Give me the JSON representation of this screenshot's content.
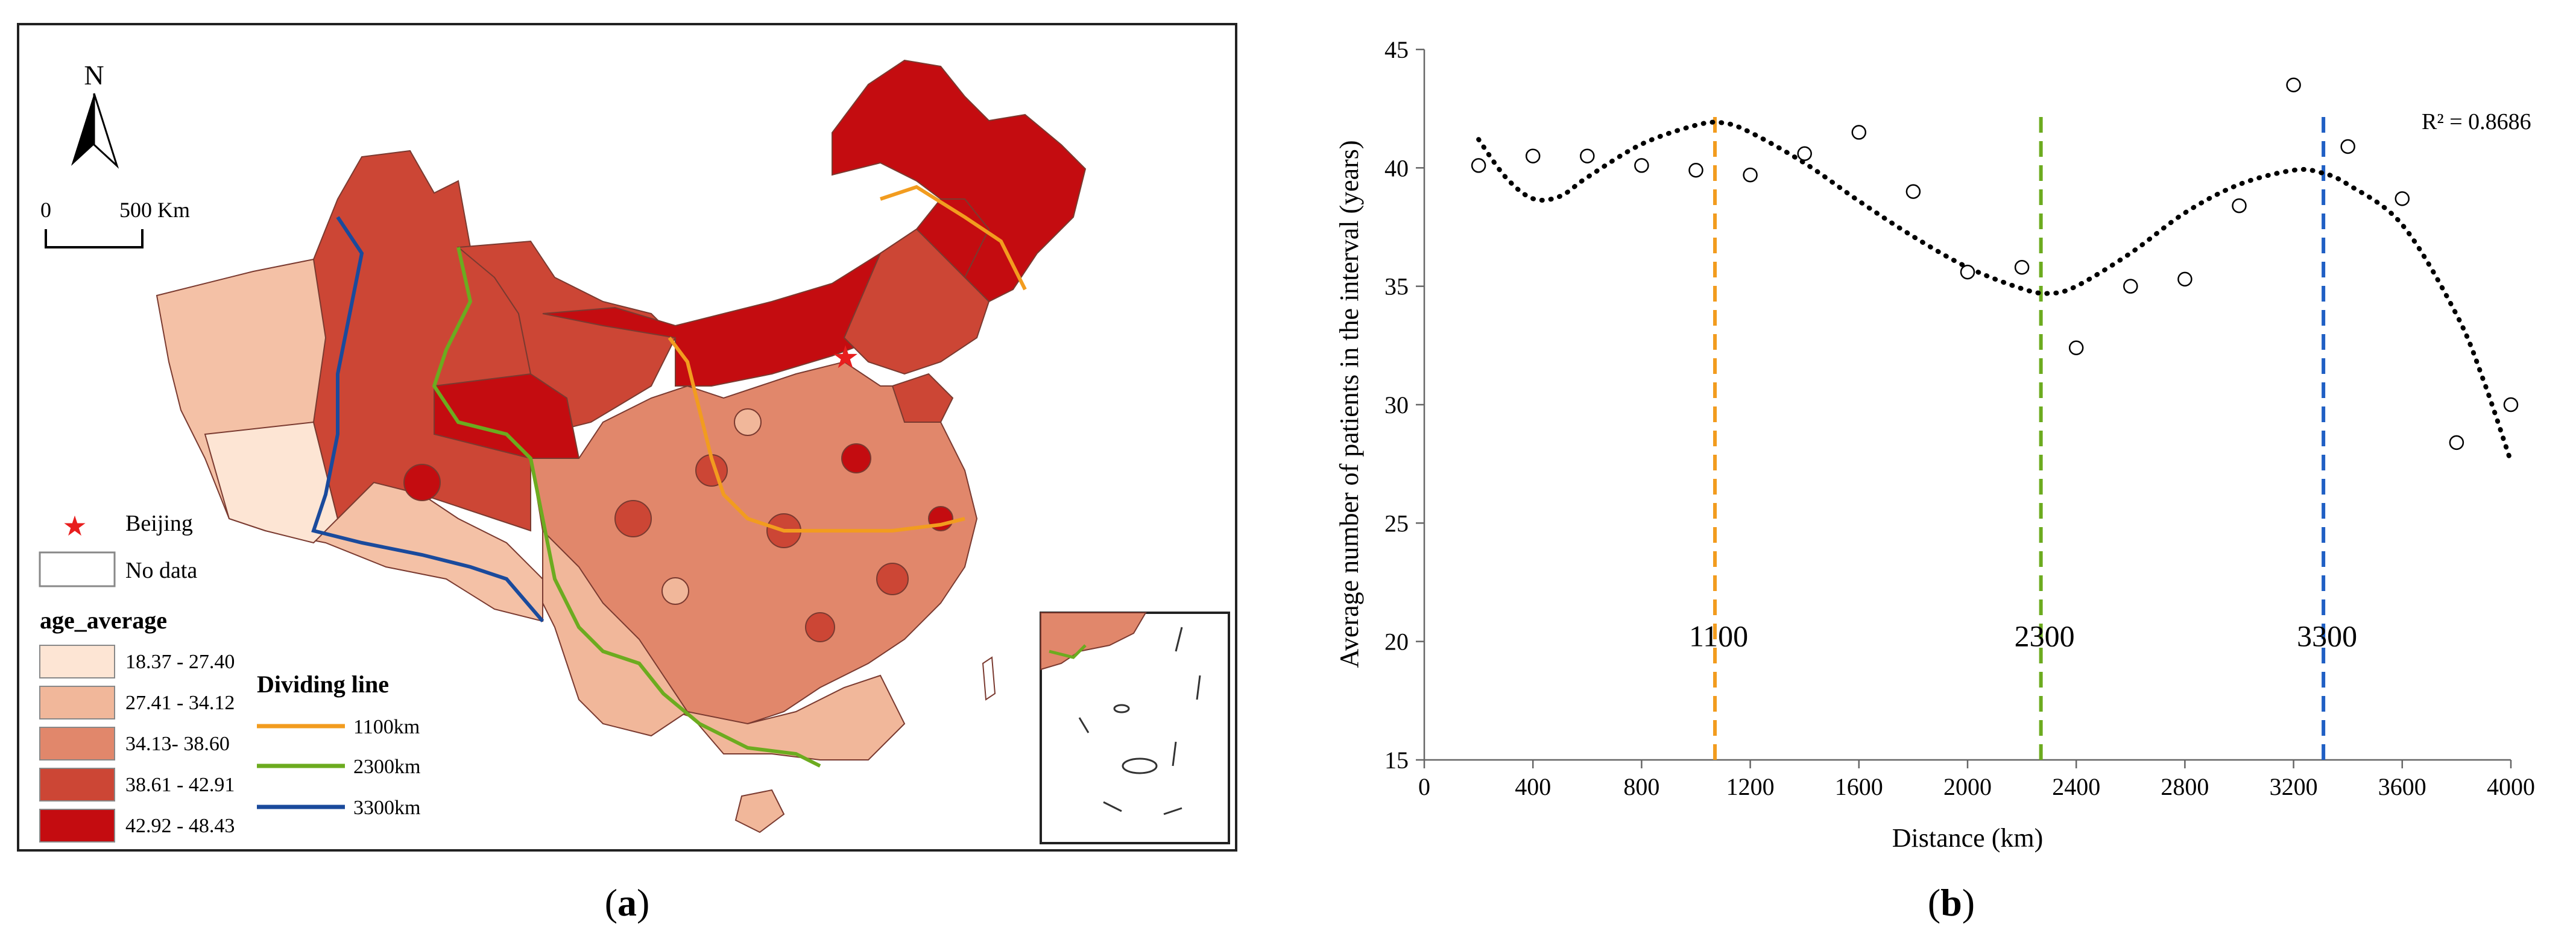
{
  "panel_a": {
    "label_open": "(",
    "label_letter": "a",
    "label_close": ")",
    "north": "N",
    "scale_zero": "0",
    "scale_text": "500 Km",
    "beijing_label": "Beijing",
    "no_data_label": "No data",
    "legend_title": "age_average",
    "classes": [
      {
        "range": "18.37 - 27.40",
        "color": "#fde5d4"
      },
      {
        "range": "27.41 - 34.12",
        "color": "#f1b79a"
      },
      {
        "range": "34.13- 38.60",
        "color": "#e1876b"
      },
      {
        "range": "38.61 - 42.91",
        "color": "#cc4635"
      },
      {
        "range": "42.92 - 48.43",
        "color": "#c40c10"
      }
    ],
    "dividing_title": "Dividing line",
    "dividing_lines": [
      {
        "label": "1100km",
        "color": "#f29c1f"
      },
      {
        "label": "2300km",
        "color": "#6cab1f"
      },
      {
        "label": "3300km",
        "color": "#1a4a9c"
      }
    ]
  },
  "panel_b": {
    "label_open": "(",
    "label_letter": "b",
    "label_close": ")"
  },
  "chart_data": {
    "type": "scatter",
    "title": "",
    "xlabel": "Distance (km)",
    "ylabel": "Average number of patients in the interval (years)",
    "xlim": [
      0,
      4000
    ],
    "ylim": [
      15,
      45
    ],
    "xticks": [
      0,
      400,
      800,
      1200,
      1600,
      2000,
      2400,
      2800,
      3200,
      3600,
      4000
    ],
    "yticks": [
      15,
      20,
      25,
      30,
      35,
      40,
      45
    ],
    "points": [
      {
        "x": 200,
        "y": 40.1
      },
      {
        "x": 400,
        "y": 40.5
      },
      {
        "x": 600,
        "y": 40.5
      },
      {
        "x": 800,
        "y": 40.1
      },
      {
        "x": 1000,
        "y": 39.9
      },
      {
        "x": 1200,
        "y": 39.7
      },
      {
        "x": 1400,
        "y": 40.6
      },
      {
        "x": 1600,
        "y": 41.5
      },
      {
        "x": 1800,
        "y": 39.0
      },
      {
        "x": 2000,
        "y": 35.6
      },
      {
        "x": 2200,
        "y": 35.8
      },
      {
        "x": 2400,
        "y": 32.4
      },
      {
        "x": 2600,
        "y": 35.0
      },
      {
        "x": 2800,
        "y": 35.3
      },
      {
        "x": 3000,
        "y": 38.4
      },
      {
        "x": 3200,
        "y": 43.5
      },
      {
        "x": 3400,
        "y": 40.9
      },
      {
        "x": 3600,
        "y": 38.7
      },
      {
        "x": 3800,
        "y": 28.4
      },
      {
        "x": 4000,
        "y": 30.0
      }
    ],
    "trendline_type": "polynomial",
    "trendline_points": [
      {
        "x": 200,
        "y": 41.2
      },
      {
        "x": 300,
        "y": 39.6
      },
      {
        "x": 400,
        "y": 38.7
      },
      {
        "x": 500,
        "y": 38.8
      },
      {
        "x": 600,
        "y": 39.6
      },
      {
        "x": 800,
        "y": 41.0
      },
      {
        "x": 1000,
        "y": 41.8
      },
      {
        "x": 1100,
        "y": 41.9
      },
      {
        "x": 1200,
        "y": 41.5
      },
      {
        "x": 1400,
        "y": 40.2
      },
      {
        "x": 1600,
        "y": 38.6
      },
      {
        "x": 1800,
        "y": 37.1
      },
      {
        "x": 2000,
        "y": 35.8
      },
      {
        "x": 2200,
        "y": 34.9
      },
      {
        "x": 2300,
        "y": 34.7
      },
      {
        "x": 2400,
        "y": 35.0
      },
      {
        "x": 2600,
        "y": 36.4
      },
      {
        "x": 2800,
        "y": 38.1
      },
      {
        "x": 3000,
        "y": 39.3
      },
      {
        "x": 3200,
        "y": 39.9
      },
      {
        "x": 3300,
        "y": 39.8
      },
      {
        "x": 3400,
        "y": 39.3
      },
      {
        "x": 3600,
        "y": 37.6
      },
      {
        "x": 3800,
        "y": 33.8
      },
      {
        "x": 3900,
        "y": 31.0
      },
      {
        "x": 4000,
        "y": 27.6
      }
    ],
    "r_squared": "R² = 0.8686",
    "vlines": [
      {
        "x": 1070,
        "label": "1100",
        "color": "#f29c1f"
      },
      {
        "x": 2270,
        "label": "2300",
        "color": "#6cab1f"
      },
      {
        "x": 3310,
        "label": "3300",
        "color": "#1f5fc4"
      }
    ],
    "vline_label_y": 19.8
  }
}
